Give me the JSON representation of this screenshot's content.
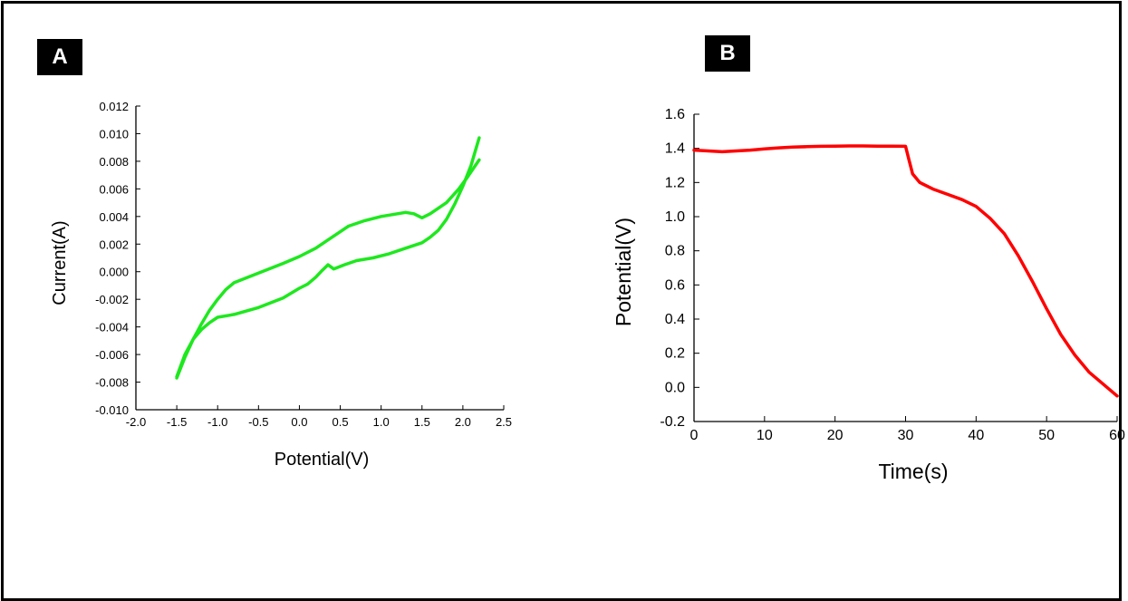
{
  "panels": {
    "a_label": "A",
    "b_label": "B"
  },
  "chart_data": [
    {
      "type": "line",
      "panel": "A",
      "title": "",
      "xlabel": "Potential(V)",
      "ylabel": "Current(A)",
      "xlim": [
        -2.0,
        2.5
      ],
      "ylim": [
        -0.01,
        0.012
      ],
      "xticks": [
        "-2.0",
        "-1.5",
        "-1.0",
        "-0.5",
        "0.0",
        "0.5",
        "1.0",
        "1.5",
        "2.0",
        "2.5"
      ],
      "yticks": [
        "-0.010",
        "-0.008",
        "-0.006",
        "-0.004",
        "-0.002",
        "0.000",
        "0.002",
        "0.004",
        "0.006",
        "0.008",
        "0.010",
        "0.012"
      ],
      "grid": false,
      "color": "#1ee81e",
      "series": [
        {
          "x": [
            -1.5,
            -1.4,
            -1.3,
            -1.2,
            -1.1,
            -1.0,
            -0.9,
            -0.8,
            -0.5,
            -0.2,
            0.0,
            0.2,
            0.35,
            0.5,
            0.6,
            0.8,
            1.0,
            1.2,
            1.3,
            1.4,
            1.5,
            1.6,
            1.8,
            1.95,
            2.05,
            2.2
          ],
          "y": [
            -0.0077,
            -0.0062,
            -0.0049,
            -0.0038,
            -0.0028,
            -0.002,
            -0.0013,
            -0.0008,
            -0.0001,
            0.0006,
            0.0011,
            0.0017,
            0.0023,
            0.0029,
            0.0033,
            0.0037,
            0.004,
            0.0042,
            0.0043,
            0.0042,
            0.0039,
            0.0042,
            0.005,
            0.006,
            0.0068,
            0.0081
          ]
        },
        {
          "x": [
            2.2,
            2.1,
            2.0,
            1.9,
            1.8,
            1.7,
            1.6,
            1.5,
            1.3,
            1.1,
            0.9,
            0.7,
            0.55,
            0.42,
            0.35,
            0.28,
            0.2,
            0.1,
            0.0,
            -0.2,
            -0.5,
            -0.8,
            -1.0,
            -1.1,
            -1.2,
            -1.3,
            -1.4,
            -1.5
          ],
          "y": [
            0.0097,
            0.0077,
            0.0062,
            0.0049,
            0.0038,
            0.003,
            0.0025,
            0.0021,
            0.0017,
            0.0013,
            0.001,
            0.0008,
            0.0005,
            0.0002,
            0.0005,
            0.0001,
            -0.0004,
            -0.0009,
            -0.0012,
            -0.0019,
            -0.0026,
            -0.0031,
            -0.0033,
            -0.0037,
            -0.0042,
            -0.0049,
            -0.006,
            -0.0076
          ]
        }
      ]
    },
    {
      "type": "line",
      "panel": "B",
      "title": "",
      "xlabel": "Time(s)",
      "ylabel": "Potential(V)",
      "xlim": [
        0,
        60
      ],
      "ylim": [
        -0.2,
        1.6
      ],
      "xticks": [
        "0",
        "10",
        "20",
        "30",
        "40",
        "50",
        "60"
      ],
      "yticks": [
        "-0.2",
        "0.0",
        "0.2",
        "0.4",
        "0.6",
        "0.8",
        "1.0",
        "1.2",
        "1.4",
        "1.6"
      ],
      "grid": false,
      "color": "#ff0000",
      "series": [
        {
          "x": [
            0,
            2,
            4,
            6,
            8,
            10,
            12,
            14,
            16,
            18,
            20,
            22,
            24,
            26,
            28,
            30,
            30.5,
            31,
            32,
            34,
            36,
            38,
            40,
            42,
            44,
            46,
            48,
            50,
            52,
            54,
            56,
            58,
            60
          ],
          "y": [
            1.39,
            1.385,
            1.38,
            1.385,
            1.39,
            1.397,
            1.403,
            1.408,
            1.41,
            1.412,
            1.413,
            1.414,
            1.414,
            1.413,
            1.413,
            1.412,
            1.33,
            1.25,
            1.2,
            1.16,
            1.13,
            1.1,
            1.06,
            0.99,
            0.9,
            0.77,
            0.62,
            0.46,
            0.31,
            0.19,
            0.09,
            0.02,
            -0.05
          ]
        }
      ]
    }
  ]
}
